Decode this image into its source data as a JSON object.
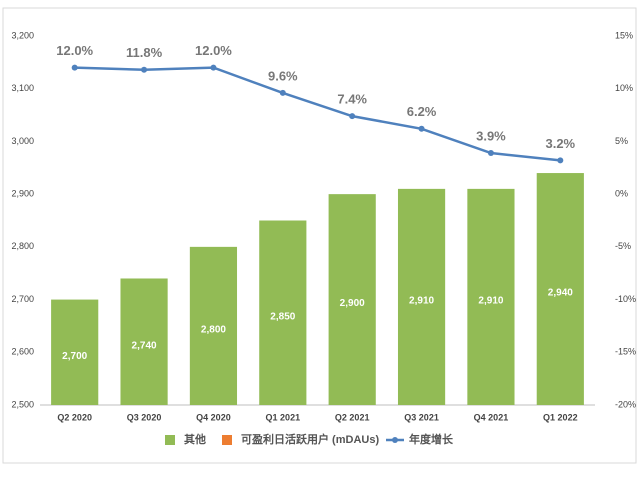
{
  "chart_data": {
    "type": "bar",
    "categories": [
      "Q2 2020",
      "Q3 2020",
      "Q4 2020",
      "Q1 2021",
      "Q2 2021",
      "Q3 2021",
      "Q4 2021",
      "Q1 2022"
    ],
    "series": [
      {
        "name": "其他",
        "color": "#92bb55",
        "values": [
          2700,
          2740,
          2800,
          2850,
          2900,
          2910,
          2910,
          2940
        ],
        "value_labels": [
          "2,700",
          "2,740",
          "2,800",
          "2,850",
          "2,900",
          "2,910",
          "2,910",
          "2,940"
        ]
      },
      {
        "name": "可盈利日活跃用户 (mDAUs)",
        "color": "#ed7d31",
        "values": [
          null,
          null,
          null,
          null,
          null,
          null,
          null,
          null
        ]
      },
      {
        "name": "年度增长",
        "color": "#4f81bd",
        "axis": "y2",
        "type": "line",
        "values": [
          12.0,
          11.8,
          12.0,
          9.6,
          7.4,
          6.2,
          3.9,
          3.2
        ],
        "value_labels": [
          "12.0%",
          "11.8%",
          "12.0%",
          "9.6%",
          "7.4%",
          "6.2%",
          "3.9%",
          "3.2%"
        ]
      }
    ],
    "ylim": [
      2500,
      3200
    ],
    "yticks": [
      {
        "value": 2500,
        "label": "2,500"
      },
      {
        "value": 2600,
        "label": "2,600"
      },
      {
        "value": 2700,
        "label": "2,700"
      },
      {
        "value": 2800,
        "label": "2,800"
      },
      {
        "value": 2900,
        "label": "2,900"
      },
      {
        "value": 3000,
        "label": "3,000"
      },
      {
        "value": 3100,
        "label": "3,100"
      },
      {
        "value": 3200,
        "label": "3,200"
      }
    ],
    "y2lim": [
      -20,
      15
    ],
    "y2ticks": [
      {
        "value": -20,
        "label": "-20%"
      },
      {
        "value": -15,
        "label": "-15%"
      },
      {
        "value": -10,
        "label": "-10%"
      },
      {
        "value": -5,
        "label": "-5%"
      },
      {
        "value": 0,
        "label": "0%"
      },
      {
        "value": 5,
        "label": "5%"
      },
      {
        "value": 10,
        "label": "10%"
      },
      {
        "value": 15,
        "label": "15%"
      }
    ],
    "grid": false,
    "legend": "bottom"
  }
}
